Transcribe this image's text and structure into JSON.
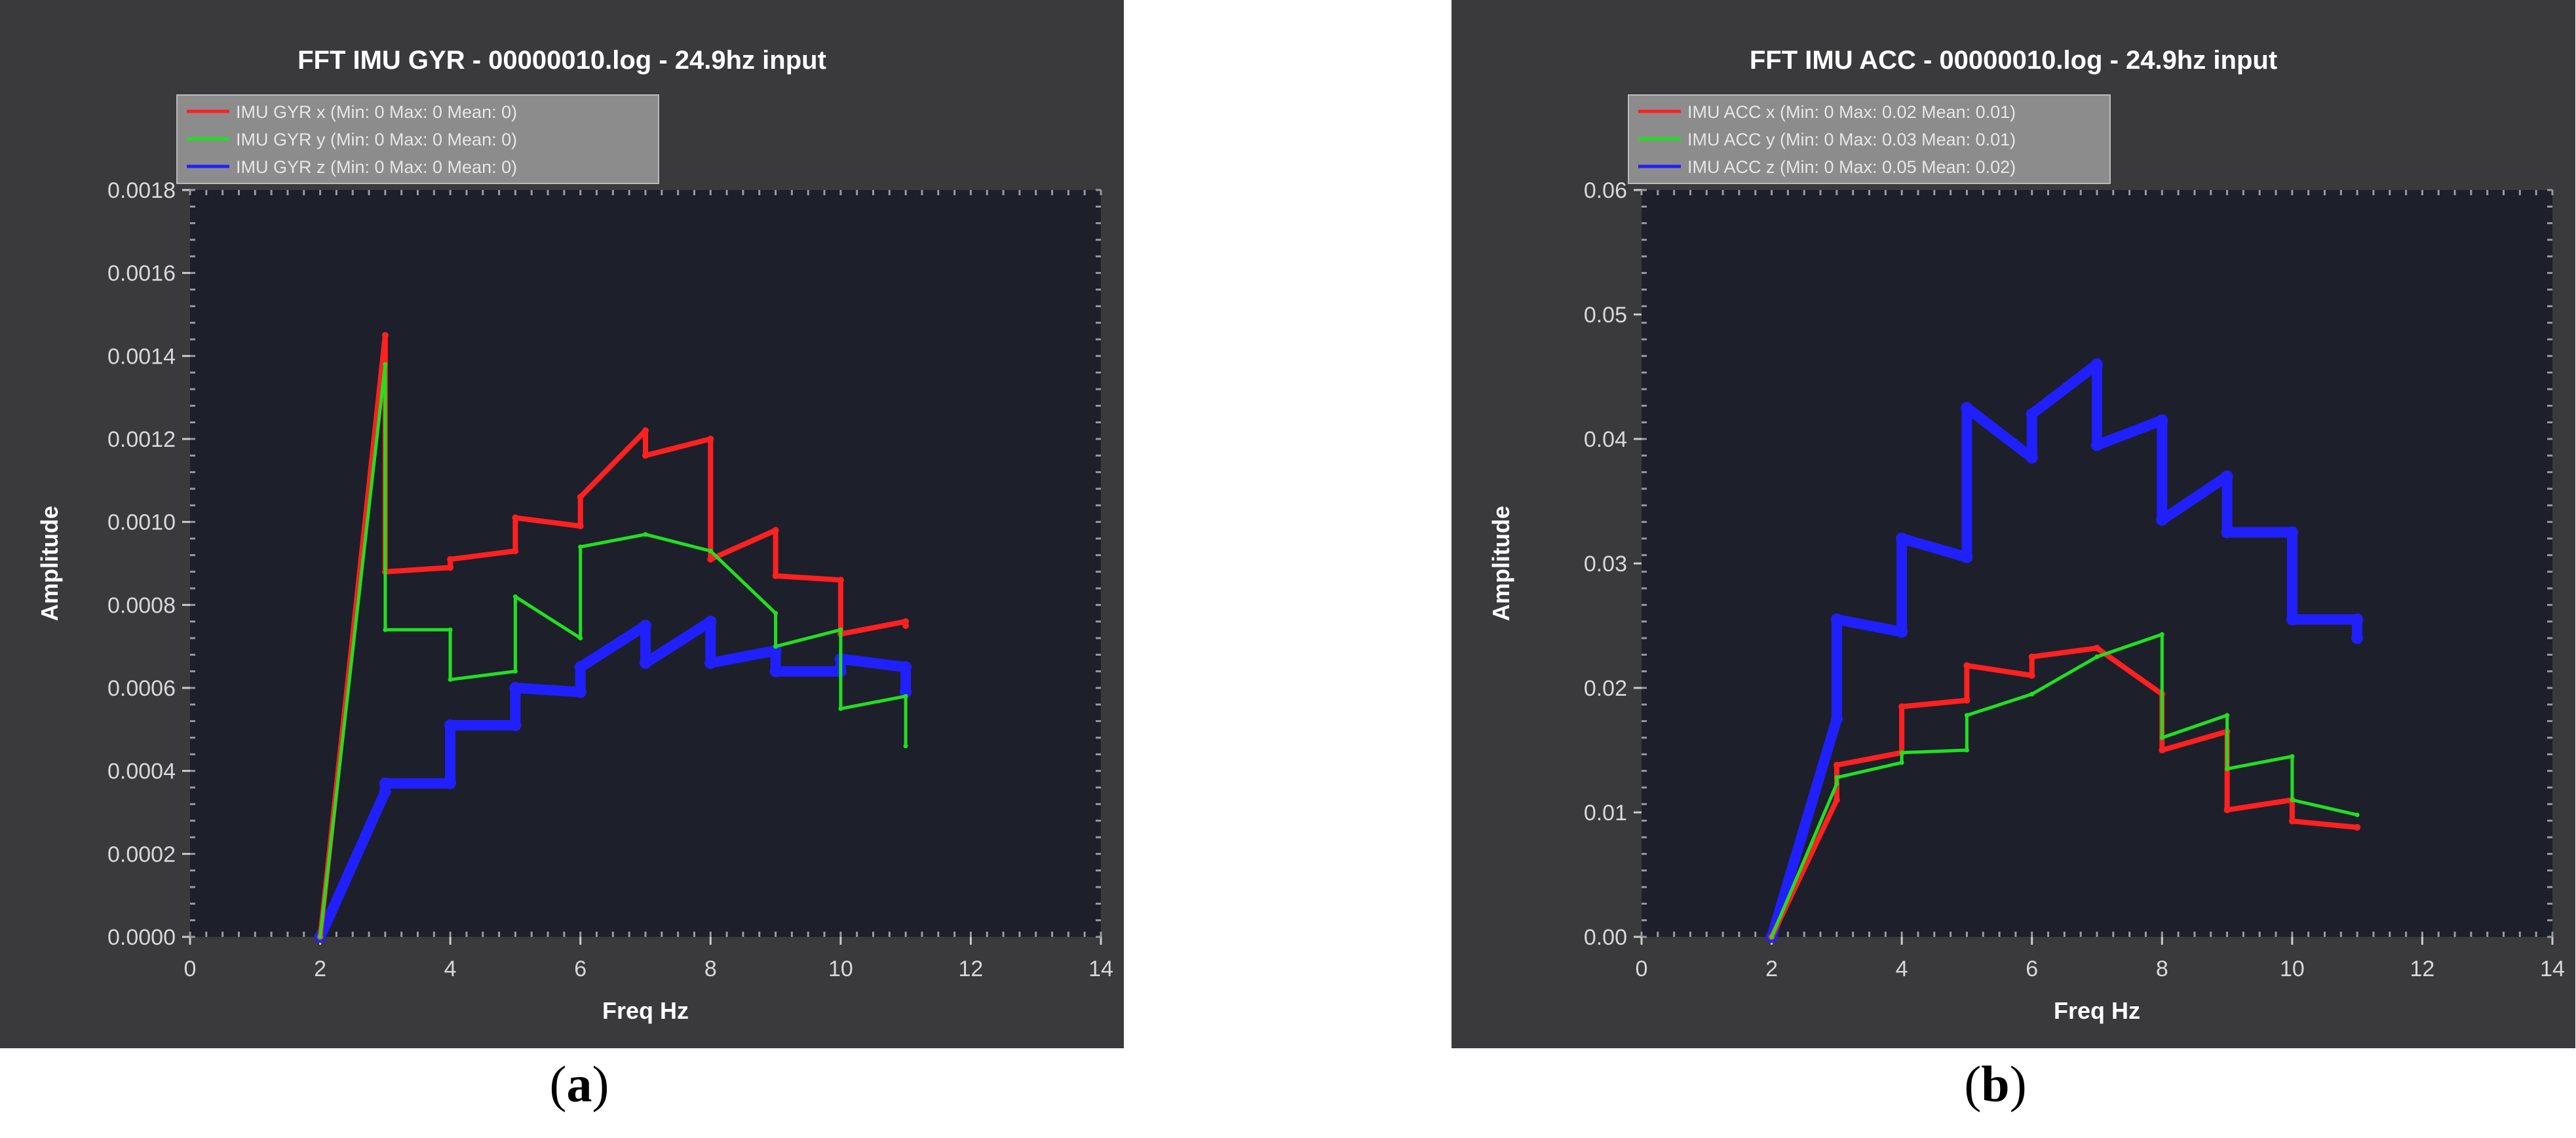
{
  "charts": [
    {
      "id": "a",
      "title": "FFT IMU GYR - 00000010.log - 24.9hz input",
      "xlabel": "Freq Hz",
      "ylabel": "Amplitude",
      "caption_letter": "a",
      "legend": [
        "IMU GYR x (Min: 0 Max: 0 Mean: 0)",
        "IMU GYR y (Min: 0 Max: 0 Mean: 0)",
        "IMU GYR z (Min: 0 Max: 0 Mean: 0)"
      ],
      "x_ticks": [
        "0",
        "2",
        "4",
        "6",
        "8",
        "10",
        "12",
        "14"
      ],
      "y_ticks": [
        "0.0000",
        "0.0002",
        "0.0004",
        "0.0006",
        "0.0008",
        "0.0010",
        "0.0012",
        "0.0014",
        "0.0016",
        "0.0018"
      ]
    },
    {
      "id": "b",
      "title": "FFT IMU ACC - 00000010.log - 24.9hz input",
      "xlabel": "Freq Hz",
      "ylabel": "Amplitude",
      "caption_letter": "b",
      "legend": [
        "IMU ACC x (Min: 0 Max: 0.02 Mean: 0.01)",
        "IMU ACC y (Min: 0 Max: 0.03 Mean: 0.01)",
        "IMU ACC z (Min: 0 Max: 0.05 Mean: 0.02)"
      ],
      "x_ticks": [
        "0",
        "2",
        "4",
        "6",
        "8",
        "10",
        "12",
        "14"
      ],
      "y_ticks": [
        "0.00",
        "0.01",
        "0.02",
        "0.03",
        "0.04",
        "0.05",
        "0.06"
      ]
    }
  ],
  "chart_data": [
    {
      "type": "line",
      "xlim": [
        0,
        14
      ],
      "ylim": [
        0,
        0.0018
      ],
      "grid": false,
      "legend_position": "top-left",
      "series": [
        {
          "name": "IMU GYR x (Min: 0 Max: 0 Mean: 0)",
          "color": "#ff2020",
          "x": [
            2,
            3,
            3,
            4,
            4,
            5,
            5,
            6,
            6,
            7,
            7,
            8,
            8,
            9,
            9,
            10,
            10,
            11,
            11
          ],
          "y": [
            0,
            0.00145,
            0.00088,
            0.00089,
            0.00091,
            0.00093,
            0.00101,
            0.00099,
            0.00106,
            0.00122,
            0.00116,
            0.0012,
            0.00091,
            0.00098,
            0.00087,
            0.00086,
            0.00073,
            0.00076,
            0.00075
          ]
        },
        {
          "name": "IMU GYR y (Min: 0 Max: 0 Mean: 0)",
          "color": "#20e020",
          "x": [
            2,
            3,
            3,
            4,
            4,
            5,
            5,
            6,
            6,
            7,
            7,
            8,
            8,
            9,
            9,
            10,
            10,
            11,
            11
          ],
          "y": [
            0,
            0.00138,
            0.00074,
            0.00074,
            0.00062,
            0.00064,
            0.00082,
            0.00072,
            0.00094,
            0.00097,
            0.00097,
            0.00093,
            0.00093,
            0.00078,
            0.0007,
            0.00074,
            0.00055,
            0.00058,
            0.00046
          ]
        },
        {
          "name": "IMU GYR z (Min: 0 Max: 0 Mean: 0)",
          "color": "#2020ff",
          "x": [
            2,
            3,
            3,
            4,
            4,
            5,
            5,
            6,
            6,
            7,
            7,
            8,
            8,
            9,
            9,
            10,
            10,
            11,
            11
          ],
          "y": [
            0,
            0.00035,
            0.00037,
            0.00037,
            0.00051,
            0.00051,
            0.0006,
            0.00059,
            0.00065,
            0.00075,
            0.00066,
            0.00076,
            0.00066,
            0.00069,
            0.00064,
            0.00064,
            0.00067,
            0.00065,
            0.00059
          ]
        }
      ]
    },
    {
      "type": "line",
      "xlim": [
        0,
        14
      ],
      "ylim": [
        0,
        0.06
      ],
      "grid": false,
      "legend_position": "top-left",
      "series": [
        {
          "name": "IMU ACC x (Min: 0 Max: 0.02 Mean: 0.01)",
          "color": "#ff2020",
          "x": [
            2,
            3,
            3,
            4,
            4,
            5,
            5,
            6,
            6,
            7,
            7,
            8,
            8,
            9,
            9,
            10,
            10,
            11
          ],
          "y": [
            0,
            0.011,
            0.0138,
            0.0148,
            0.0185,
            0.019,
            0.0218,
            0.021,
            0.0225,
            0.0232,
            0.0232,
            0.0195,
            0.015,
            0.0165,
            0.0102,
            0.011,
            0.0093,
            0.0088
          ]
        },
        {
          "name": "IMU ACC y (Min: 0 Max: 0.03 Mean: 0.01)",
          "color": "#20e020",
          "x": [
            2,
            3,
            3,
            4,
            4,
            5,
            5,
            6,
            6,
            7,
            7,
            8,
            8,
            9,
            9,
            10,
            10,
            11
          ],
          "y": [
            0,
            0.0123,
            0.0128,
            0.014,
            0.0148,
            0.015,
            0.0178,
            0.0195,
            0.0195,
            0.0225,
            0.0225,
            0.0243,
            0.016,
            0.0178,
            0.0135,
            0.0145,
            0.011,
            0.0098
          ]
        },
        {
          "name": "IMU ACC z (Min: 0 Max: 0.05 Mean: 0.02)",
          "color": "#2020ff",
          "x": [
            2,
            3,
            3,
            4,
            4,
            5,
            5,
            6,
            6,
            7,
            7,
            8,
            8,
            9,
            9,
            10,
            10,
            11,
            11
          ],
          "y": [
            0,
            0.0175,
            0.0255,
            0.0245,
            0.032,
            0.0305,
            0.0425,
            0.0385,
            0.042,
            0.046,
            0.0395,
            0.0415,
            0.0335,
            0.037,
            0.0325,
            0.0325,
            0.0255,
            0.0255,
            0.024
          ]
        }
      ]
    }
  ]
}
